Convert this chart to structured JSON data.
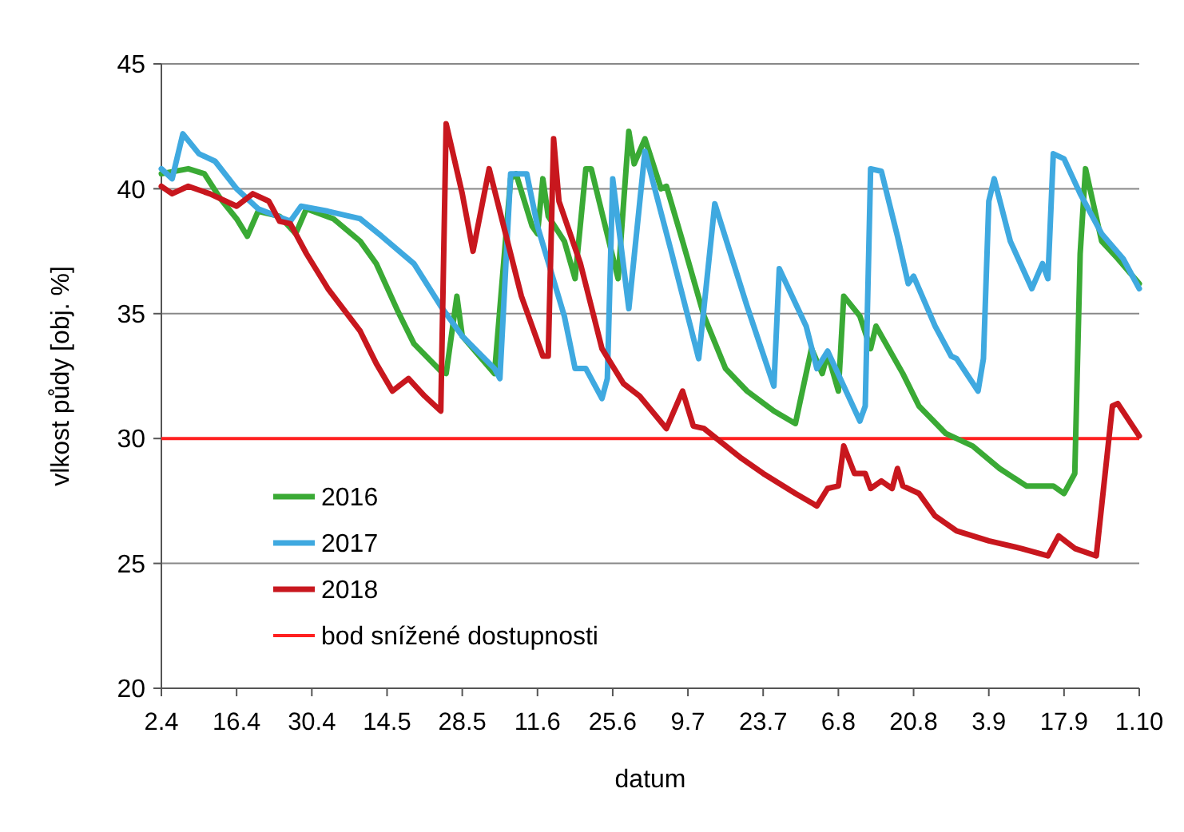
{
  "chart_data": {
    "type": "line",
    "xlabel": "datum",
    "ylabel": "vlkost půdy [obj. %]",
    "xlim": [
      "--04-02",
      "--10-01"
    ],
    "xticks": [
      {
        "value": "--04-02",
        "label": "2.4"
      },
      {
        "value": "--04-16",
        "label": "16.4"
      },
      {
        "value": "--04-30",
        "label": "30.4"
      },
      {
        "value": "--05-14",
        "label": "14.5"
      },
      {
        "value": "--05-28",
        "label": "28.5"
      },
      {
        "value": "--06-11",
        "label": "11.6"
      },
      {
        "value": "--06-25",
        "label": "25.6"
      },
      {
        "value": "--07-09",
        "label": "9.7"
      },
      {
        "value": "--07-23",
        "label": "23.7"
      },
      {
        "value": "--08-06",
        "label": "6.8"
      },
      {
        "value": "--08-20",
        "label": "20.8"
      },
      {
        "value": "--09-03",
        "label": "3.9"
      },
      {
        "value": "--09-17",
        "label": "17.9"
      },
      {
        "value": "--10-01",
        "label": "1.10"
      }
    ],
    "ylim": [
      20,
      45
    ],
    "yticks": [
      20,
      25,
      30,
      35,
      40,
      45
    ],
    "grid": "y",
    "legend": "bottom left",
    "line_style": "solid",
    "ref_lines": [
      {
        "axis": "y",
        "value": 30,
        "label": "bod snížené dostupnosti",
        "color": "#ff2020"
      }
    ],
    "series": [
      {
        "name": "2016",
        "color": "#3aaa35",
        "x": [
          "--04-02",
          "--04-07",
          "--04-10",
          "--04-13",
          "--04-16",
          "--04-18",
          "--04-20",
          "--04-24",
          "--04-27",
          "--04-29",
          "--05-04",
          "--05-09",
          "--05-12",
          "--05-16",
          "--05-19",
          "--05-24",
          "--05-25",
          "--05-27",
          "--05-28",
          "--06-03",
          "--06-06",
          "--06-07",
          "--06-10",
          "--06-11",
          "--06-12",
          "--06-13",
          "--06-16",
          "--06-18",
          "--06-20",
          "--06-21",
          "--06-26",
          "--06-28",
          "--06-29",
          "--07-01",
          "--07-04",
          "--07-05",
          "--07-08",
          "--07-12",
          "--07-16",
          "--07-20",
          "--07-25",
          "--07-29",
          "--08-01",
          "--08-03",
          "--08-04",
          "--08-06",
          "--08-07",
          "--08-10",
          "--08-12",
          "--08-13",
          "--08-18",
          "--08-21",
          "--08-26",
          "--08-31",
          "--09-05",
          "--09-10",
          "--09-15",
          "--09-17",
          "--09-19",
          "--09-20",
          "--09-21",
          "--09-24",
          "--09-27",
          "--10-01"
        ],
        "values": [
          40.6,
          40.8,
          40.6,
          39.6,
          38.8,
          38.1,
          39.1,
          38.9,
          38.2,
          39.2,
          38.8,
          37.9,
          37.0,
          35.1,
          33.8,
          32.7,
          32.6,
          35.7,
          34.1,
          32.6,
          40.4,
          40.6,
          38.5,
          38.2,
          40.4,
          38.9,
          37.9,
          36.4,
          40.8,
          40.8,
          36.4,
          42.3,
          41.0,
          42.0,
          40.0,
          40.1,
          37.9,
          34.9,
          32.8,
          31.9,
          31.1,
          30.6,
          33.6,
          32.6,
          33.4,
          31.9,
          35.7,
          34.9,
          33.6,
          34.5,
          32.6,
          31.3,
          30.2,
          29.7,
          28.8,
          28.1,
          28.1,
          27.8,
          28.6,
          37.4,
          40.8,
          37.9,
          37.2,
          36.2
        ]
      },
      {
        "name": "2017",
        "color": "#3fa9e0",
        "x": [
          "--04-02",
          "--04-04",
          "--04-06",
          "--04-09",
          "--04-12",
          "--04-16",
          "--04-20",
          "--04-26",
          "--04-28",
          "--05-03",
          "--05-09",
          "--05-13",
          "--05-19",
          "--05-24",
          "--05-28",
          "--06-03",
          "--06-04",
          "--06-06",
          "--06-09",
          "--06-11",
          "--06-16",
          "--06-18",
          "--06-20",
          "--06-23",
          "--06-24",
          "--06-25",
          "--06-28",
          "--07-01",
          "--07-06",
          "--07-11",
          "--07-14",
          "--07-20",
          "--07-25",
          "--07-26",
          "--07-31",
          "--08-02",
          "--08-04",
          "--08-10",
          "--08-11",
          "--08-12",
          "--08-14",
          "--08-17",
          "--08-19",
          "--08-20",
          "--08-24",
          "--08-27",
          "--08-28",
          "--09-01",
          "--09-02",
          "--09-03",
          "--09-04",
          "--09-07",
          "--09-11",
          "--09-13",
          "--09-14",
          "--09-15",
          "--09-17",
          "--09-20",
          "--09-24",
          "--09-28",
          "--10-01"
        ],
        "values": [
          40.8,
          40.4,
          42.2,
          41.4,
          41.1,
          40.0,
          39.2,
          38.7,
          39.3,
          39.1,
          38.8,
          38.1,
          37.0,
          35.3,
          34.1,
          32.8,
          32.4,
          40.6,
          40.6,
          38.5,
          34.9,
          32.8,
          32.8,
          31.6,
          32.4,
          40.4,
          35.2,
          41.5,
          37.4,
          33.2,
          39.4,
          35.3,
          32.1,
          36.8,
          34.5,
          32.8,
          33.5,
          30.7,
          31.3,
          40.8,
          40.7,
          38.1,
          36.2,
          36.5,
          34.5,
          33.3,
          33.2,
          31.9,
          33.2,
          39.5,
          40.4,
          37.9,
          36.0,
          37.0,
          36.4,
          41.4,
          41.2,
          39.8,
          38.2,
          37.2,
          36.0
        ]
      },
      {
        "name": "2018",
        "color": "#c8171e",
        "x": [
          "--04-02",
          "--04-04",
          "--04-07",
          "--04-11",
          "--04-16",
          "--04-19",
          "--04-22",
          "--04-24",
          "--04-26",
          "--04-29",
          "--05-03",
          "--05-09",
          "--05-12",
          "--05-15",
          "--05-18",
          "--05-21",
          "--05-24",
          "--05-25",
          "--05-28",
          "--05-30",
          "--06-02",
          "--06-04",
          "--06-08",
          "--06-12",
          "--06-13",
          "--06-14",
          "--06-15",
          "--06-19",
          "--06-23",
          "--06-27",
          "--06-30",
          "--07-05",
          "--07-08",
          "--07-10",
          "--07-12",
          "--07-19",
          "--07-23",
          "--07-29",
          "--08-02",
          "--08-04",
          "--08-06",
          "--08-07",
          "--08-09",
          "--08-11",
          "--08-12",
          "--08-14",
          "--08-16",
          "--08-17",
          "--08-18",
          "--08-21",
          "--08-24",
          "--08-28",
          "--09-03",
          "--09-09",
          "--09-14",
          "--09-16",
          "--09-19",
          "--09-23",
          "--09-26",
          "--09-27",
          "--10-01"
        ],
        "values": [
          40.1,
          39.8,
          40.1,
          39.8,
          39.3,
          39.8,
          39.5,
          38.7,
          38.6,
          37.4,
          36.0,
          34.3,
          33.0,
          31.9,
          32.4,
          31.7,
          31.1,
          42.6,
          39.8,
          37.5,
          40.8,
          39.1,
          35.7,
          33.3,
          33.3,
          42.0,
          39.5,
          37.0,
          33.6,
          32.2,
          31.7,
          30.4,
          31.9,
          30.5,
          30.4,
          29.2,
          28.6,
          27.8,
          27.3,
          28.0,
          28.1,
          29.7,
          28.6,
          28.6,
          28.0,
          28.3,
          28.0,
          28.8,
          28.1,
          27.8,
          26.9,
          26.3,
          25.9,
          25.6,
          25.3,
          26.1,
          25.6,
          25.3,
          31.3,
          31.4,
          30.1
        ]
      }
    ]
  }
}
